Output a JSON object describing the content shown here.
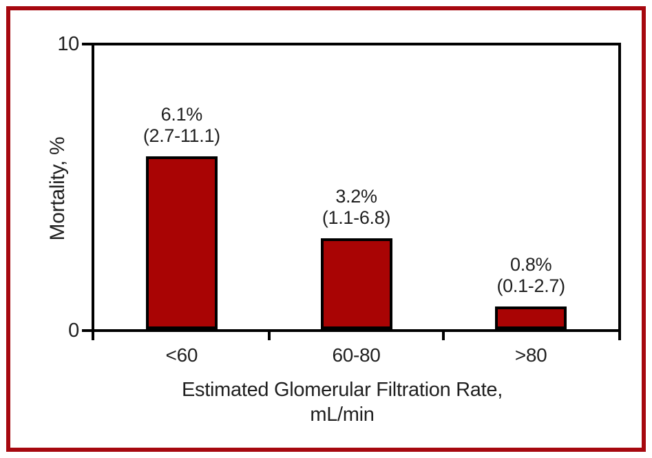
{
  "figure": {
    "frame_color": "#A6080F",
    "background": "#FFFFFF",
    "text_color": "#1F1F1F",
    "axis_color": "#000000"
  },
  "chart_data": {
    "type": "bar",
    "categories": [
      "<60",
      "60-80",
      ">80"
    ],
    "values": [
      6.1,
      3.2,
      0.8
    ],
    "value_labels": [
      "6.1%",
      "3.2%",
      "0.8%"
    ],
    "ci_labels": [
      "(2.7-11.1)",
      "(1.1-6.8)",
      "(0.1-2.7)"
    ],
    "bar_color": "#A90404",
    "bar_border_color": "#000000",
    "title": "",
    "ylabel": "Mortality, %",
    "xlabel": "Estimated Glomerular Filtration Rate, mL/min",
    "xlabel_lines": [
      "Estimated Glomerular Filtration Rate,",
      "mL/min"
    ],
    "ylim": [
      0,
      10
    ],
    "yticks": [
      0,
      10
    ],
    "ytick_labels": [
      "0",
      "10"
    ],
    "grid": false,
    "legend": null
  }
}
